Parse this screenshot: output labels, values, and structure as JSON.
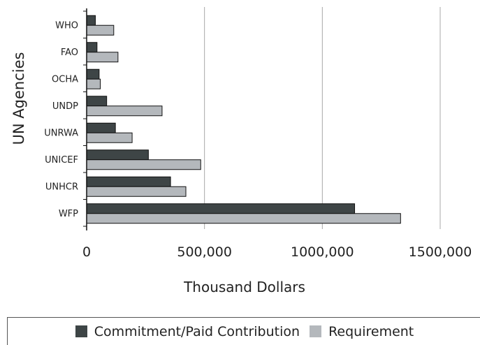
{
  "chart_data": {
    "type": "bar",
    "orientation": "horizontal",
    "title": "",
    "xlabel": "Thousand Dollars",
    "ylabel": "UN Agencies",
    "categories": [
      "WHO",
      "FAO",
      "OCHA",
      "UNDP",
      "UNRWA",
      "UNICEF",
      "UNHCR",
      "WFP"
    ],
    "series": [
      {
        "name": "Commitment/Paid Contribution",
        "color": "#3e4546",
        "values": [
          37000,
          44000,
          53000,
          85000,
          122000,
          262000,
          356000,
          1137000
        ]
      },
      {
        "name": "Requirement",
        "color": "#b4b8bc",
        "values": [
          115000,
          133000,
          58000,
          320000,
          193000,
          484000,
          421000,
          1332000
        ]
      }
    ],
    "xlim": [
      0,
      1500000
    ],
    "xticks": [
      0,
      500000,
      1000000,
      1500000
    ],
    "xtick_labels": [
      "0",
      "500,000",
      "1000,000",
      "1500,000"
    ],
    "grid": "vertical gridlines",
    "legend_position": "bottom"
  }
}
